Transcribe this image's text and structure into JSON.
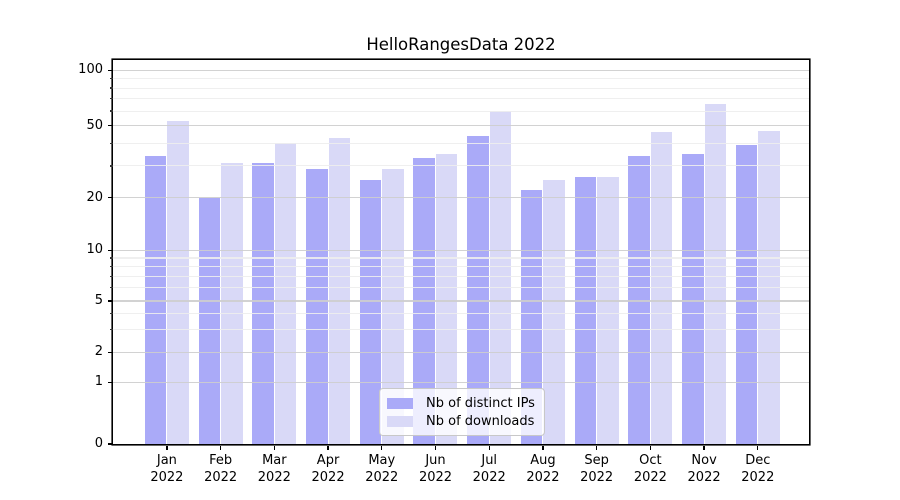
{
  "title": "HelloRangesData 2022",
  "legend": {
    "entries": [
      {
        "label": "Nb of distinct IPs",
        "color": "#aaaaf8"
      },
      {
        "label": "Nb of downloads",
        "color": "#d9d9f7"
      }
    ]
  },
  "y_axis": {
    "tick_labels": [
      "0",
      "1",
      "2",
      "5",
      "10",
      "20",
      "50",
      "100"
    ]
  },
  "x_axis": {
    "tick_labels": [
      "Jan 2022",
      "Feb 2022",
      "Mar 2022",
      "Apr 2022",
      "May 2022",
      "Jun 2022",
      "Jul 2022",
      "Aug 2022",
      "Sep 2022",
      "Oct 2022",
      "Nov 2022",
      "Dec 2022"
    ]
  },
  "chart_data": {
    "type": "bar",
    "title": "HelloRangesData 2022",
    "categories": [
      "Jan 2022",
      "Feb 2022",
      "Mar 2022",
      "Apr 2022",
      "May 2022",
      "Jun 2022",
      "Jul 2022",
      "Aug 2022",
      "Sep 2022",
      "Oct 2022",
      "Nov 2022",
      "Dec 2022"
    ],
    "series": [
      {
        "name": "Nb of distinct IPs",
        "color": "#aaaaf8",
        "values": [
          34,
          20,
          31,
          29,
          25,
          33,
          44,
          22,
          26,
          34,
          35,
          39
        ]
      },
      {
        "name": "Nb of downloads",
        "color": "#d9d9f7",
        "values": [
          53,
          31,
          40,
          43,
          29,
          35,
          60,
          25,
          26,
          46,
          66,
          47
        ]
      }
    ],
    "xlabel": "",
    "ylabel": "",
    "yscale": "symlog",
    "ylim": [
      0,
      113
    ],
    "y_ticks": [
      0,
      1,
      2,
      5,
      10,
      20,
      50,
      100
    ],
    "y_minor_gridlines": [
      3,
      4,
      6,
      7,
      8,
      9,
      30,
      40,
      60,
      70,
      80,
      90
    ],
    "grid": "horizontal major and minor gridlines, drawn above bars",
    "legend_position": "lower center inside axes"
  }
}
